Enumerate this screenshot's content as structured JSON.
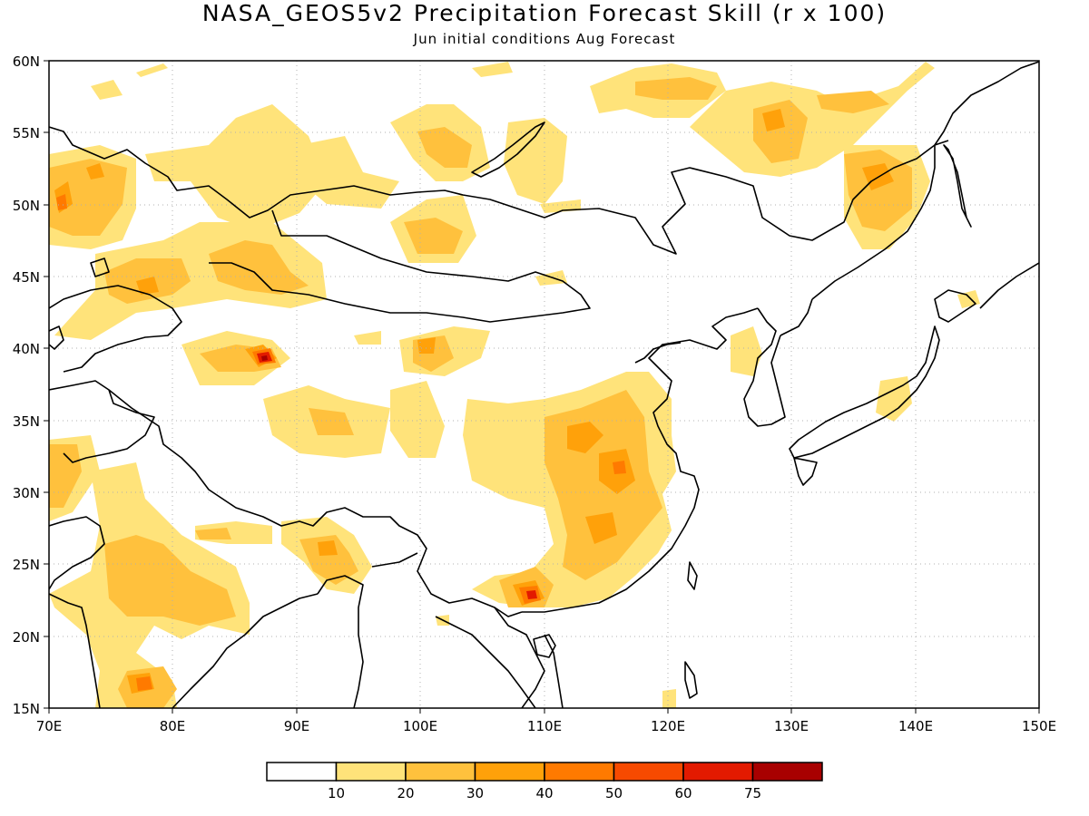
{
  "title": "NASA_GEOS5v2 Precipitation Forecast Skill (r x 100)",
  "subtitle": "Jun initial conditions  Aug Forecast",
  "map": {
    "region": {
      "lon": [
        70,
        150
      ],
      "lat": [
        15,
        60
      ]
    },
    "lon_ticks": [
      "70E",
      "80E",
      "90E",
      "100E",
      "110E",
      "120E",
      "130E",
      "140E",
      "150E"
    ],
    "lat_ticks": [
      "15N",
      "20N",
      "25N",
      "30N",
      "35N",
      "40N",
      "45N",
      "50N",
      "55N",
      "60N"
    ],
    "grid": "dotted"
  },
  "colorbar": {
    "colors": [
      "#ffffff",
      "#ffe37a",
      "#ffc13d",
      "#ffa10a",
      "#ff7a00",
      "#f74a00",
      "#e31a00",
      "#a80000"
    ],
    "labels": [
      "10",
      "20",
      "30",
      "40",
      "50",
      "60",
      "75"
    ]
  }
}
